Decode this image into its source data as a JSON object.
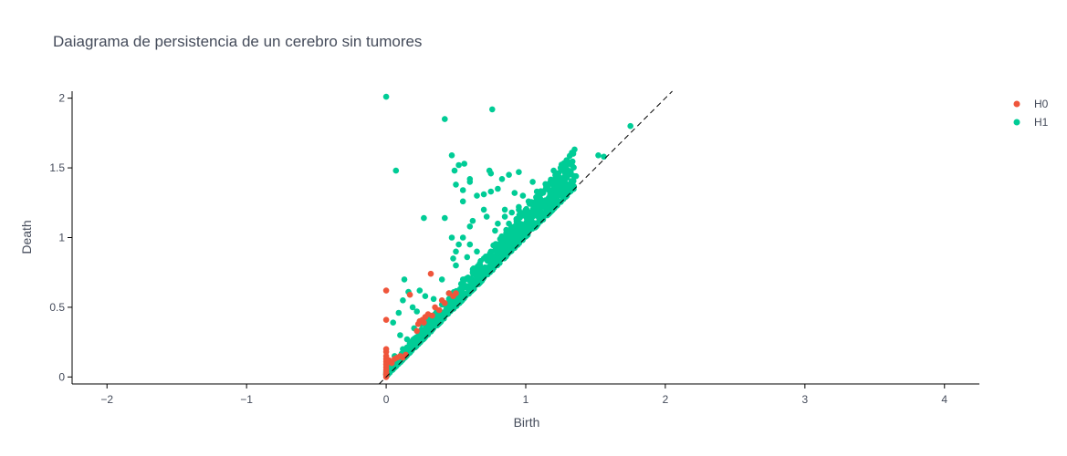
{
  "chart_data": {
    "type": "scatter",
    "title": "Daiagrama de persistencia de un cerebro sin tumores",
    "xlabel": "Birth",
    "ylabel": "Death",
    "xlim": [
      -2.25,
      4.25
    ],
    "ylim": [
      -0.05,
      2.05
    ],
    "x_ticks": [
      -2,
      -1,
      0,
      1,
      2,
      3,
      4
    ],
    "x_tick_labels": [
      "−2",
      "−1",
      "0",
      "1",
      "2",
      "3",
      "4"
    ],
    "y_ticks": [
      0,
      0.5,
      1,
      1.5,
      2
    ],
    "y_tick_labels": [
      "0",
      "0.5",
      "1",
      "1.5",
      "2"
    ],
    "grid": false,
    "legend_position": "top-right",
    "diagonal": {
      "from": [
        -0.05,
        -0.05
      ],
      "to": [
        2.05,
        2.05
      ],
      "style": "dashed"
    },
    "series": [
      {
        "name": "H0",
        "color": "#EF553B",
        "points": [
          [
            0.0,
            0.62
          ],
          [
            0.0,
            0.41
          ],
          [
            0.0,
            0.2
          ],
          [
            0.0,
            0.18
          ],
          [
            0.0,
            0.15
          ],
          [
            0.0,
            0.13
          ],
          [
            0.0,
            0.11
          ],
          [
            0.0,
            0.09
          ],
          [
            0.0,
            0.07
          ],
          [
            0.0,
            0.05
          ],
          [
            0.0,
            0.03
          ],
          [
            0.0,
            0.02
          ],
          [
            0.0,
            0.01
          ],
          [
            0.0,
            0.0
          ],
          [
            0.02,
            0.12
          ],
          [
            0.04,
            0.1
          ],
          [
            0.06,
            0.13
          ],
          [
            0.08,
            0.14
          ],
          [
            0.1,
            0.15
          ],
          [
            0.12,
            0.14
          ],
          [
            0.14,
            0.16
          ],
          [
            0.17,
            0.59
          ],
          [
            0.32,
            0.74
          ],
          [
            0.28,
            0.43
          ],
          [
            0.23,
            0.38
          ],
          [
            0.24,
            0.4
          ],
          [
            0.26,
            0.41
          ],
          [
            0.3,
            0.45
          ],
          [
            0.35,
            0.5
          ],
          [
            0.4,
            0.55
          ],
          [
            0.45,
            0.6
          ],
          [
            0.5,
            0.6
          ],
          [
            0.48,
            0.58
          ],
          [
            0.42,
            0.53
          ],
          [
            0.38,
            0.48
          ],
          [
            0.33,
            0.44
          ],
          [
            0.27,
            0.39
          ],
          [
            0.22,
            0.33
          ]
        ]
      },
      {
        "name": "H1",
        "color": "#00CC96",
        "points": [
          [
            0.0,
            2.01
          ],
          [
            0.42,
            1.85
          ],
          [
            0.76,
            1.92
          ],
          [
            1.75,
            1.8
          ],
          [
            0.07,
            1.48
          ],
          [
            1.52,
            1.59
          ],
          [
            1.56,
            1.58
          ],
          [
            0.27,
            1.14
          ],
          [
            0.42,
            1.14
          ],
          [
            0.47,
            1.59
          ],
          [
            0.52,
            1.52
          ],
          [
            0.56,
            1.53
          ],
          [
            0.49,
            1.48
          ],
          [
            0.6,
            1.42
          ],
          [
            0.74,
            1.48
          ],
          [
            0.75,
            1.46
          ],
          [
            0.95,
            1.47
          ],
          [
            0.88,
            1.45
          ],
          [
            0.83,
            1.42
          ],
          [
            0.5,
            1.38
          ],
          [
            0.6,
            1.4
          ],
          [
            0.55,
            1.34
          ],
          [
            0.65,
            1.3
          ],
          [
            0.8,
            1.35
          ],
          [
            1.05,
            1.4
          ],
          [
            1.2,
            1.48
          ],
          [
            1.25,
            1.5
          ],
          [
            1.36,
            1.44
          ],
          [
            0.55,
            1.26
          ],
          [
            0.7,
            1.31
          ],
          [
            0.75,
            1.33
          ],
          [
            0.92,
            1.32
          ],
          [
            1.02,
            1.26
          ],
          [
            0.95,
            1.22
          ],
          [
            0.16,
            0.61
          ],
          [
            0.12,
            0.55
          ],
          [
            0.13,
            0.7
          ],
          [
            0.09,
            0.46
          ],
          [
            0.05,
            0.39
          ],
          [
            0.19,
            0.5
          ],
          [
            0.24,
            0.62
          ],
          [
            0.28,
            0.58
          ],
          [
            0.34,
            0.56
          ],
          [
            0.22,
            0.47
          ],
          [
            0.45,
            0.6
          ],
          [
            0.47,
            1.0
          ],
          [
            0.5,
            0.9
          ],
          [
            0.52,
            0.95
          ],
          [
            0.55,
            1.0
          ],
          [
            0.6,
            1.08
          ],
          [
            0.62,
            1.12
          ],
          [
            0.7,
            1.2
          ],
          [
            0.72,
            1.15
          ],
          [
            0.6,
            0.95
          ],
          [
            0.58,
            0.86
          ],
          [
            0.65,
            0.9
          ],
          [
            0.5,
            0.8
          ],
          [
            0.48,
            0.85
          ],
          [
            0.4,
            0.7
          ],
          [
            0.8,
            1.1
          ],
          [
            0.85,
            1.2
          ],
          [
            0.9,
            1.18
          ],
          [
            0.78,
            1.05
          ],
          [
            0.88,
            1.1
          ],
          [
            0.95,
            1.2
          ],
          [
            0.85,
            1.15
          ],
          [
            0.98,
            1.3
          ],
          [
            1.08,
            1.33
          ],
          [
            1.1,
            1.3
          ],
          [
            1.15,
            1.35
          ],
          [
            1.2,
            1.38
          ],
          [
            1.25,
            1.39
          ],
          [
            1.3,
            1.38
          ],
          [
            1.33,
            1.37
          ],
          [
            1.28,
            1.36
          ],
          [
            1.22,
            1.32
          ],
          [
            1.18,
            1.3
          ],
          [
            1.12,
            1.25
          ],
          [
            1.05,
            1.2
          ],
          [
            0.1,
            0.3
          ],
          [
            0.15,
            0.27
          ],
          [
            0.2,
            0.35
          ],
          [
            0.25,
            0.38
          ],
          [
            0.18,
            0.25
          ],
          [
            0.12,
            0.2
          ],
          [
            0.06,
            0.15
          ],
          [
            0.03,
            0.08
          ],
          [
            0.01,
            0.05
          ],
          [
            0.02,
            0.03
          ],
          [
            0.35,
            0.45
          ],
          [
            0.3,
            0.42
          ],
          [
            0.4,
            0.52
          ],
          [
            0.45,
            0.56
          ],
          [
            0.55,
            0.7
          ],
          [
            0.65,
            0.78
          ],
          [
            0.7,
            0.85
          ],
          [
            0.75,
            0.9
          ],
          [
            0.8,
            0.95
          ],
          [
            0.9,
            1.05
          ],
          [
            1.0,
            1.1
          ],
          [
            1.05,
            1.15
          ],
          [
            1.1,
            1.2
          ],
          [
            1.15,
            1.25
          ],
          [
            0.62,
            0.75
          ]
        ],
        "dense_band": {
          "x_range": [
            0.0,
            1.35
          ],
          "death_minus_birth_max": [
            0.04,
            0.28
          ]
        }
      }
    ]
  }
}
